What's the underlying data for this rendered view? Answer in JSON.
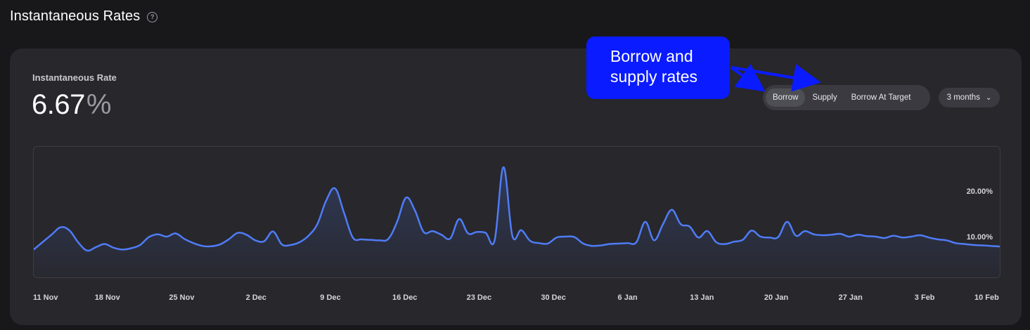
{
  "header": {
    "title": "Instantaneous Rates",
    "help_icon": "question-circle-icon"
  },
  "summary": {
    "label": "Instantaneous Rate",
    "value": "6.67",
    "unit": "%"
  },
  "tabs": [
    {
      "label": "Borrow",
      "active": true
    },
    {
      "label": "Supply",
      "active": false
    },
    {
      "label": "Borrow At Target",
      "active": false
    }
  ],
  "period": {
    "label": "3 months",
    "icon": "chevron-down-icon"
  },
  "annotation": {
    "text_line1": "Borrow and",
    "text_line2": "supply rates",
    "color": "#0a1bff"
  },
  "chart_data": {
    "type": "area",
    "color": "#4f7cf6",
    "x_ticks": [
      "11 Nov",
      "18 Nov",
      "25 Nov",
      "2 Dec",
      "9 Dec",
      "16 Dec",
      "23 Dec",
      "30 Dec",
      "6 Jan",
      "13 Jan",
      "20 Jan",
      "27 Jan",
      "3 Feb",
      "10 Feb"
    ],
    "y_ticks": [
      "10.00%",
      "20.00%"
    ],
    "ylim": [
      0,
      27
    ],
    "series": [
      {
        "values": [
          [
            0,
            6.0
          ],
          [
            2,
            9.2
          ],
          [
            3,
            10.8
          ],
          [
            4,
            10.2
          ],
          [
            5,
            7.6
          ],
          [
            6,
            5.8
          ],
          [
            7,
            6.5
          ],
          [
            8,
            7.2
          ],
          [
            9,
            6.4
          ],
          [
            10,
            6.0
          ],
          [
            11,
            6.3
          ],
          [
            12,
            7.0
          ],
          [
            13,
            8.7
          ],
          [
            14,
            9.3
          ],
          [
            15,
            8.8
          ],
          [
            16,
            9.5
          ],
          [
            17,
            8.3
          ],
          [
            18,
            7.4
          ],
          [
            19,
            6.8
          ],
          [
            20,
            6.7
          ],
          [
            21,
            7.1
          ],
          [
            22,
            8.2
          ],
          [
            23,
            9.6
          ],
          [
            24,
            9.2
          ],
          [
            25,
            8.0
          ],
          [
            26,
            7.8
          ],
          [
            27,
            9.9
          ],
          [
            28,
            7.1
          ],
          [
            29,
            7.0
          ],
          [
            30,
            7.6
          ],
          [
            31,
            9.0
          ],
          [
            32,
            11.5
          ],
          [
            33,
            16.6
          ],
          [
            34,
            19.2
          ],
          [
            35,
            14.0
          ],
          [
            36,
            8.6
          ],
          [
            37,
            8.2
          ],
          [
            38,
            8.1
          ],
          [
            39,
            8.0
          ],
          [
            40,
            8.3
          ],
          [
            41,
            12.0
          ],
          [
            42,
            17.2
          ],
          [
            43,
            14.5
          ],
          [
            44,
            9.8
          ],
          [
            45,
            10.0
          ],
          [
            46,
            9.2
          ],
          [
            47,
            8.4
          ],
          [
            48,
            12.6
          ],
          [
            49,
            9.5
          ],
          [
            50,
            9.8
          ],
          [
            51,
            9.6
          ],
          [
            52,
            8.0
          ],
          [
            53,
            23.8
          ],
          [
            54,
            9.0
          ],
          [
            55,
            10.2
          ],
          [
            56,
            7.9
          ],
          [
            57,
            7.4
          ],
          [
            58,
            7.3
          ],
          [
            59,
            8.6
          ],
          [
            60,
            8.8
          ],
          [
            61,
            8.7
          ],
          [
            62,
            7.3
          ],
          [
            63,
            6.8
          ],
          [
            64,
            6.9
          ],
          [
            65,
            7.2
          ],
          [
            66,
            7.3
          ],
          [
            67,
            7.4
          ],
          [
            68,
            7.6
          ],
          [
            69,
            12.0
          ],
          [
            70,
            8.0
          ],
          [
            71,
            11.5
          ],
          [
            72,
            14.6
          ],
          [
            73,
            11.5
          ],
          [
            74,
            11.0
          ],
          [
            75,
            8.6
          ],
          [
            76,
            10.0
          ],
          [
            77,
            7.6
          ],
          [
            78,
            7.2
          ],
          [
            79,
            7.7
          ],
          [
            80,
            8.1
          ],
          [
            81,
            10.1
          ],
          [
            82,
            8.8
          ],
          [
            83,
            8.6
          ],
          [
            84,
            8.7
          ],
          [
            85,
            12.0
          ],
          [
            86,
            9.0
          ],
          [
            87,
            10.0
          ],
          [
            88,
            9.3
          ],
          [
            89,
            9.1
          ],
          [
            90,
            9.2
          ],
          [
            91,
            9.4
          ],
          [
            92,
            8.8
          ],
          [
            93,
            9.2
          ],
          [
            94,
            8.9
          ],
          [
            95,
            8.8
          ],
          [
            96,
            8.5
          ],
          [
            97,
            9.0
          ],
          [
            98,
            8.6
          ],
          [
            99,
            8.8
          ],
          [
            100,
            9.1
          ],
          [
            101,
            8.6
          ],
          [
            102,
            8.2
          ],
          [
            103,
            8.0
          ],
          [
            104,
            7.4
          ],
          [
            105,
            7.2
          ],
          [
            106,
            7.0
          ],
          [
            107,
            6.9
          ],
          [
            108,
            6.8
          ],
          [
            109,
            6.67
          ]
        ]
      }
    ]
  }
}
